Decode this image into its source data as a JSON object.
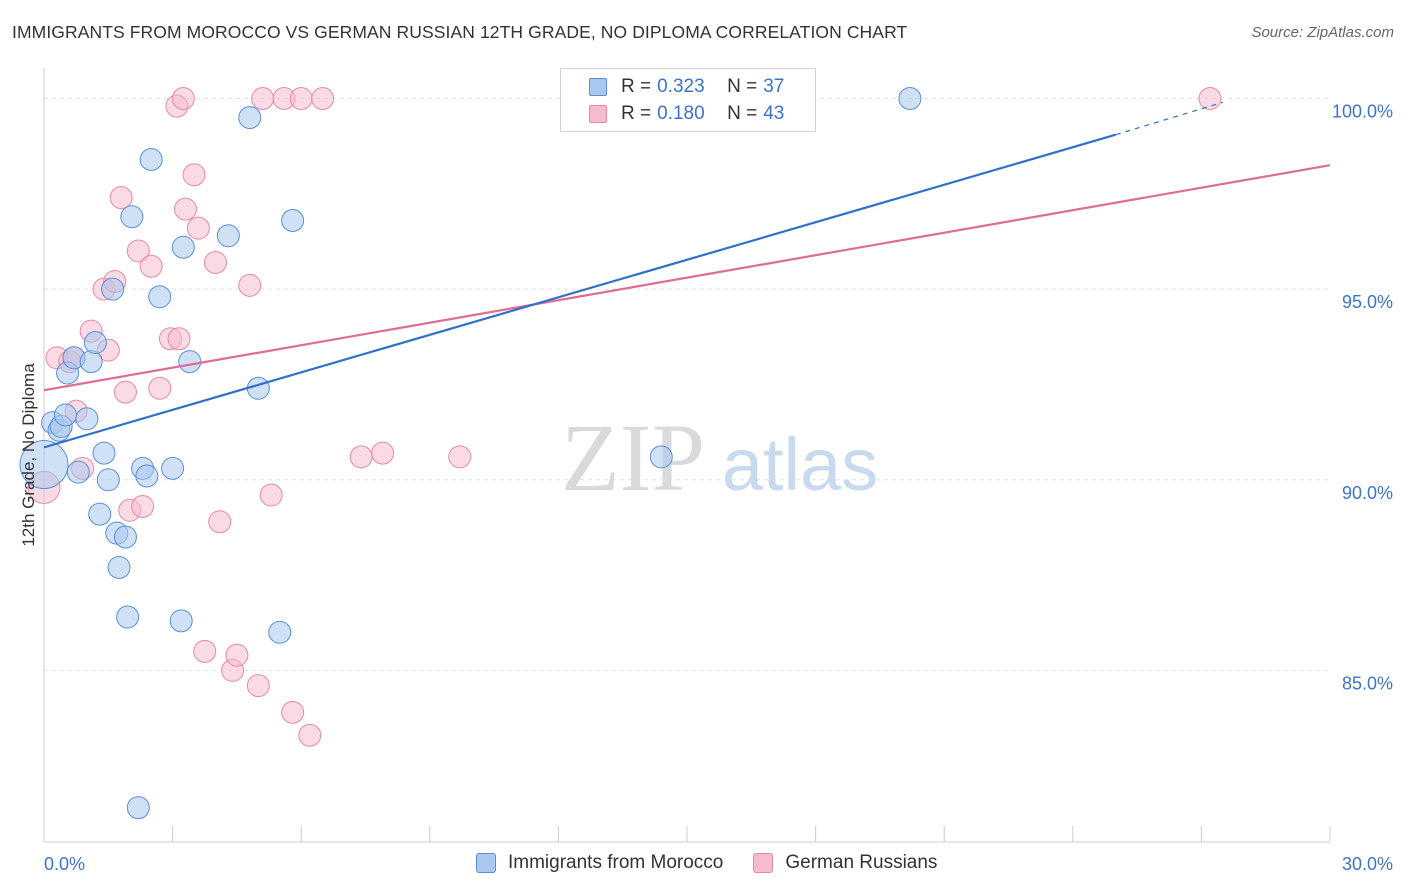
{
  "header": {
    "title": "IMMIGRANTS FROM MOROCCO VS GERMAN RUSSIAN 12TH GRADE, NO DIPLOMA CORRELATION CHART",
    "source": "Source: ZipAtlas.com"
  },
  "watermark": {
    "zip": "ZIP",
    "atlas": "atlas"
  },
  "legend_top": {
    "rows": [
      {
        "r_label": "R =",
        "r_value": "0.323",
        "n_label": "N =",
        "n_value": "37"
      },
      {
        "r_label": "R =",
        "r_value": "0.180",
        "n_label": "N =",
        "n_value": "43"
      }
    ]
  },
  "legend_bottom": {
    "items": [
      "Immigrants from Morocco",
      "German Russians"
    ]
  },
  "colors": {
    "blue_fill": "#a9c8ef",
    "blue_stroke": "#5b8fd6",
    "blue_line": "#3170c9",
    "pink_fill": "#f6bccd",
    "pink_stroke": "#e48aa6",
    "pink_line": "#e06b95",
    "axis_label": "#3d74c9",
    "grid": "#dde1e6"
  },
  "chart_data": {
    "type": "scatter",
    "title": "IMMIGRANTS FROM MOROCCO VS GERMAN RUSSIAN 12TH GRADE, NO DIPLOMA CORRELATION CHART",
    "ylabel": "12th Grade, No Diploma",
    "xlabel": "",
    "xlim": [
      0,
      30
    ],
    "ylim": [
      80.5,
      100.8
    ],
    "x_tick_labels": [
      {
        "value": 0,
        "label": "0.0%"
      },
      {
        "value": 30,
        "label": "30.0%"
      }
    ],
    "y_tick_labels": [
      {
        "value": 100,
        "label": "100.0%"
      },
      {
        "value": 95,
        "label": "95.0%"
      },
      {
        "value": 90,
        "label": "90.0%"
      },
      {
        "value": 85,
        "label": "85.0%"
      }
    ],
    "grid": true,
    "legend_position": "top-center",
    "series": [
      {
        "name": "Immigrants from Morocco",
        "R": 0.323,
        "N": 37,
        "trend": {
          "x0": 0,
          "y0": 90.85,
          "x1": 25,
          "y1": 99.05,
          "dashed_to_x": 27.5,
          "dashed_to_y": 99.9
        },
        "points": [
          [
            0.0,
            90.4,
            24
          ],
          [
            0.2,
            91.5,
            11
          ],
          [
            0.35,
            91.3,
            11
          ],
          [
            0.4,
            91.4,
            11
          ],
          [
            0.5,
            91.7,
            11
          ],
          [
            0.55,
            92.8,
            11
          ],
          [
            0.7,
            93.2,
            11
          ],
          [
            0.8,
            90.2,
            11
          ],
          [
            1.0,
            91.6,
            11
          ],
          [
            1.1,
            93.1,
            11
          ],
          [
            1.2,
            93.6,
            11
          ],
          [
            1.3,
            89.1,
            11
          ],
          [
            1.4,
            90.7,
            11
          ],
          [
            1.5,
            90.0,
            11
          ],
          [
            1.6,
            95.0,
            11
          ],
          [
            1.7,
            88.6,
            11
          ],
          [
            1.75,
            87.7,
            11
          ],
          [
            1.9,
            88.5,
            11
          ],
          [
            1.95,
            86.4,
            11
          ],
          [
            2.05,
            96.9,
            11
          ],
          [
            2.2,
            81.4,
            11
          ],
          [
            2.3,
            90.3,
            11
          ],
          [
            2.4,
            90.1,
            11
          ],
          [
            2.5,
            98.4,
            11
          ],
          [
            2.7,
            94.8,
            11
          ],
          [
            3.0,
            90.3,
            11
          ],
          [
            3.2,
            86.3,
            11
          ],
          [
            3.25,
            96.1,
            11
          ],
          [
            3.4,
            93.1,
            11
          ],
          [
            4.3,
            96.4,
            11
          ],
          [
            4.8,
            99.5,
            11
          ],
          [
            5.0,
            92.4,
            11
          ],
          [
            5.5,
            86.0,
            11
          ],
          [
            5.8,
            96.8,
            11
          ],
          [
            14.4,
            90.6,
            11
          ],
          [
            20.2,
            100.0,
            11
          ]
        ]
      },
      {
        "name": "German Russians",
        "R": 0.18,
        "N": 43,
        "trend": {
          "x0": 0,
          "y0": 92.35,
          "x1": 30,
          "y1": 98.25
        },
        "points": [
          [
            0.0,
            89.8,
            16
          ],
          [
            0.3,
            93.2,
            11
          ],
          [
            0.6,
            93.1,
            11
          ],
          [
            0.7,
            93.2,
            11
          ],
          [
            0.75,
            91.8,
            11
          ],
          [
            0.9,
            90.3,
            11
          ],
          [
            1.1,
            93.9,
            11
          ],
          [
            1.4,
            95.0,
            11
          ],
          [
            1.5,
            93.4,
            11
          ],
          [
            1.65,
            95.2,
            11
          ],
          [
            1.8,
            97.4,
            11
          ],
          [
            1.9,
            92.3,
            11
          ],
          [
            2.0,
            89.2,
            11
          ],
          [
            2.2,
            96.0,
            11
          ],
          [
            2.3,
            89.3,
            11
          ],
          [
            2.5,
            95.6,
            11
          ],
          [
            2.7,
            92.4,
            11
          ],
          [
            2.95,
            93.7,
            11
          ],
          [
            3.1,
            99.8,
            11
          ],
          [
            3.15,
            93.7,
            11
          ],
          [
            3.25,
            100.0,
            11
          ],
          [
            3.3,
            97.1,
            11
          ],
          [
            3.5,
            98.0,
            11
          ],
          [
            3.6,
            96.6,
            11
          ],
          [
            3.75,
            85.5,
            11
          ],
          [
            4.0,
            95.7,
            11
          ],
          [
            4.1,
            88.9,
            11
          ],
          [
            4.4,
            85.0,
            11
          ],
          [
            4.5,
            85.4,
            11
          ],
          [
            4.8,
            95.1,
            11
          ],
          [
            5.0,
            84.6,
            11
          ],
          [
            5.1,
            100.0,
            11
          ],
          [
            5.3,
            89.6,
            11
          ],
          [
            5.6,
            100.0,
            11
          ],
          [
            5.8,
            83.9,
            11
          ],
          [
            6.0,
            100.0,
            11
          ],
          [
            6.2,
            83.3,
            11
          ],
          [
            6.5,
            100.0,
            11
          ],
          [
            7.4,
            90.6,
            11
          ],
          [
            7.9,
            90.7,
            11
          ],
          [
            9.7,
            90.6,
            11
          ],
          [
            12.6,
            100.0,
            11
          ],
          [
            27.2,
            100.0,
            11
          ]
        ]
      }
    ]
  }
}
